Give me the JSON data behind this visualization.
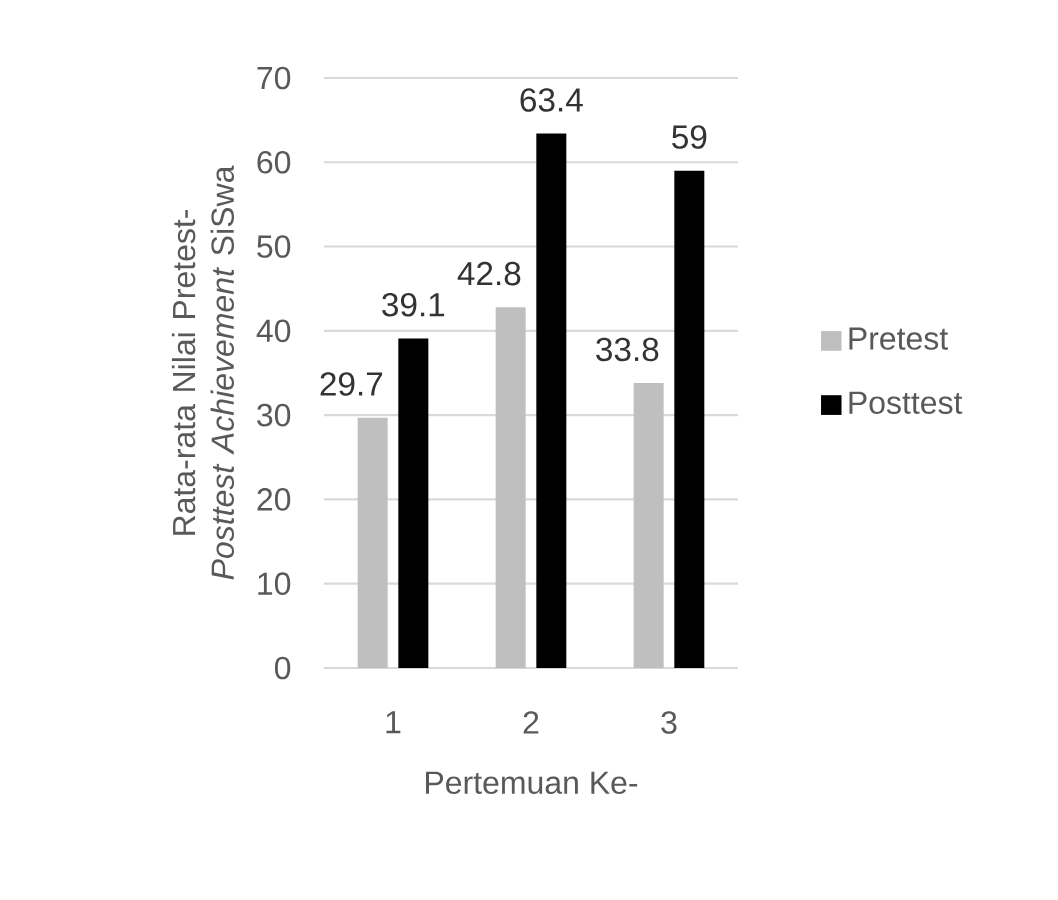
{
  "chart_data": {
    "type": "bar",
    "xlabel": "Pertemuan Ke-",
    "ylabel": "Rata-rata Nilai Pretest-*Posttest* *Achievement* SiSwa",
    "categories": [
      "1",
      "2",
      "3"
    ],
    "series": [
      {
        "name": "Pretest",
        "color": "#bfbfbf",
        "values": [
          29.7,
          42.8,
          33.8
        ]
      },
      {
        "name": "Posttest",
        "color": "#000000",
        "values": [
          39.1,
          63.4,
          59
        ]
      }
    ],
    "ylim": [
      0,
      70
    ],
    "yticks": [
      0,
      10,
      20,
      30,
      40,
      50,
      60,
      70
    ],
    "grid": "y",
    "legend": "right",
    "data_labels": true
  }
}
